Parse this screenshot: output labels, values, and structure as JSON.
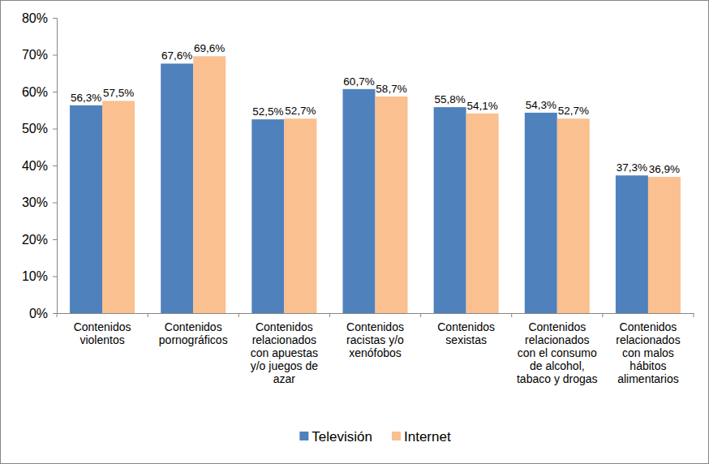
{
  "chart_data": {
    "type": "bar",
    "categories": [
      "Contenidos violentos",
      "Contenidos pornográficos",
      "Contenidos relacionados con apuestas y/o juegos de azar",
      "Contenidos racistas y/o xenófobos",
      "Contenidos sexistas",
      "Contenidos relacionados con el consumo de alcohol, tabaco y drogas",
      "Contenidos relacionados con malos hábitos alimentarios"
    ],
    "series": [
      {
        "name": "Televisión",
        "color": "#4f81bd",
        "values": [
          56.3,
          67.6,
          52.5,
          60.7,
          55.8,
          54.3,
          37.3
        ],
        "value_labels": [
          "56,3%",
          "67,6%",
          "52,5%",
          "60,7%",
          "55,8%",
          "54,3%",
          "37,3%"
        ]
      },
      {
        "name": "Internet",
        "color": "#fac090",
        "values": [
          57.5,
          69.6,
          52.7,
          58.7,
          54.1,
          52.7,
          36.9
        ],
        "value_labels": [
          "57,5%",
          "69,6%",
          "52,7%",
          "58,7%",
          "54,1%",
          "52,7%",
          "36,9%"
        ]
      }
    ],
    "ylim": [
      0,
      80
    ],
    "yticks": [
      {
        "value": 0,
        "label": "0%"
      },
      {
        "value": 10,
        "label": "10%"
      },
      {
        "value": 20,
        "label": "20%"
      },
      {
        "value": 30,
        "label": "30%"
      },
      {
        "value": 40,
        "label": "40%"
      },
      {
        "value": 50,
        "label": "50%"
      },
      {
        "value": 60,
        "label": "60%"
      },
      {
        "value": 70,
        "label": "70%"
      },
      {
        "value": 80,
        "label": "80%"
      }
    ],
    "grid": false,
    "legend": "bottom",
    "data_labels": true
  }
}
